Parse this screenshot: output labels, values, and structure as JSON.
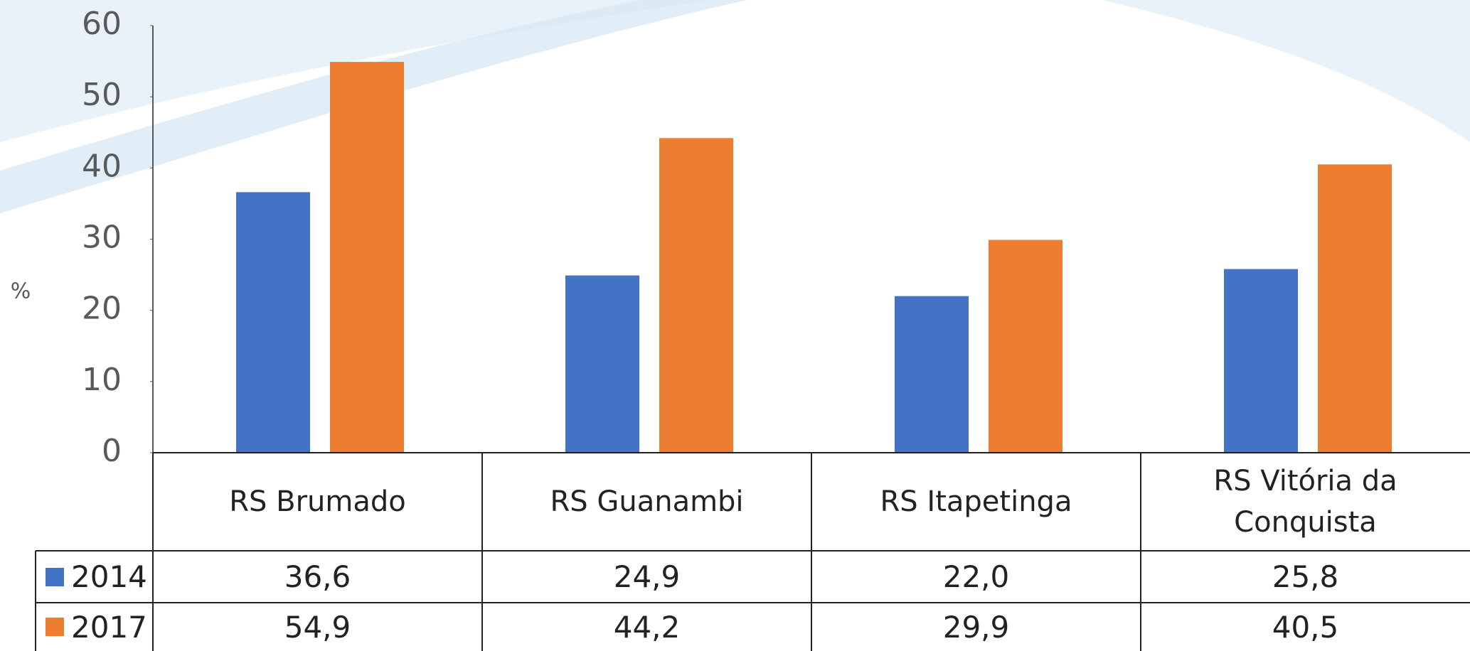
{
  "chart_data": {
    "type": "bar",
    "y_label": "%",
    "categories": [
      "RS Brumado",
      "RS Guanambi",
      "RS Itapetinga",
      "RS Vitória da Conquista"
    ],
    "series": [
      {
        "name": "2014",
        "color": "#4472c4",
        "values": [
          36.6,
          24.9,
          22.0,
          25.8
        ],
        "value_labels": [
          "36,6",
          "24,9",
          "22,0",
          "25,8"
        ]
      },
      {
        "name": "2017",
        "color": "#ed7d31",
        "values": [
          54.9,
          44.2,
          29.9,
          40.5
        ],
        "value_labels": [
          "54,9",
          "44,2",
          "29,9",
          "40,5"
        ]
      }
    ],
    "ylim": [
      0,
      60
    ],
    "yticks": [
      0,
      10,
      20,
      30,
      40,
      50,
      60
    ],
    "grid": false
  }
}
